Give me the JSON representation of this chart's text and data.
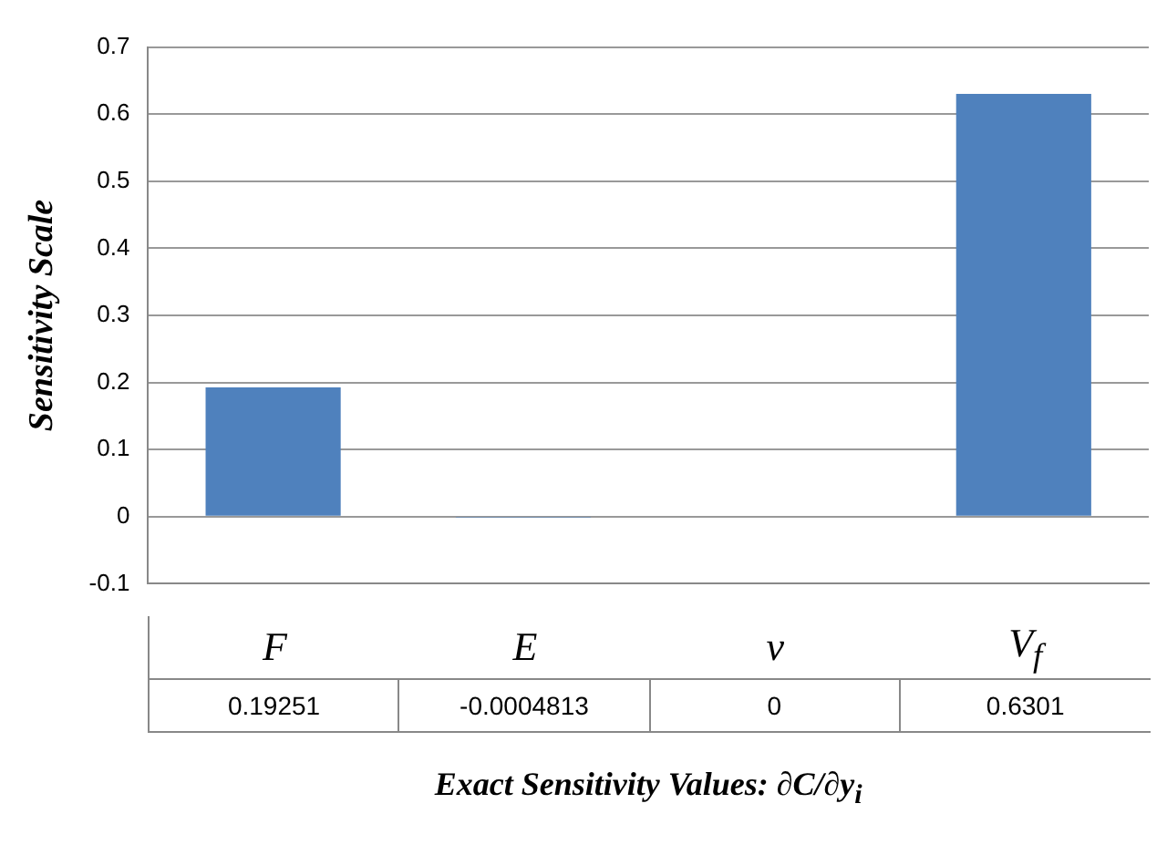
{
  "chart_data": {
    "type": "bar",
    "ylabel": "Sensitivity Scale",
    "xlabel": "Exact Sensitivity Values: ∂C/∂y$_{i}$",
    "categories": [
      "F",
      "E",
      "ν",
      "V$_{f}$"
    ],
    "values": [
      0.19251,
      -0.0004813,
      0,
      0.6301
    ],
    "color": "#4f81bd",
    "ylim": [
      -0.1,
      0.7
    ],
    "yticks": [
      -0.1,
      0,
      0.1,
      0.2,
      0.3,
      0.4,
      0.5,
      0.6,
      0.7
    ],
    "grid": "y",
    "legend": false,
    "data_labels": true
  }
}
